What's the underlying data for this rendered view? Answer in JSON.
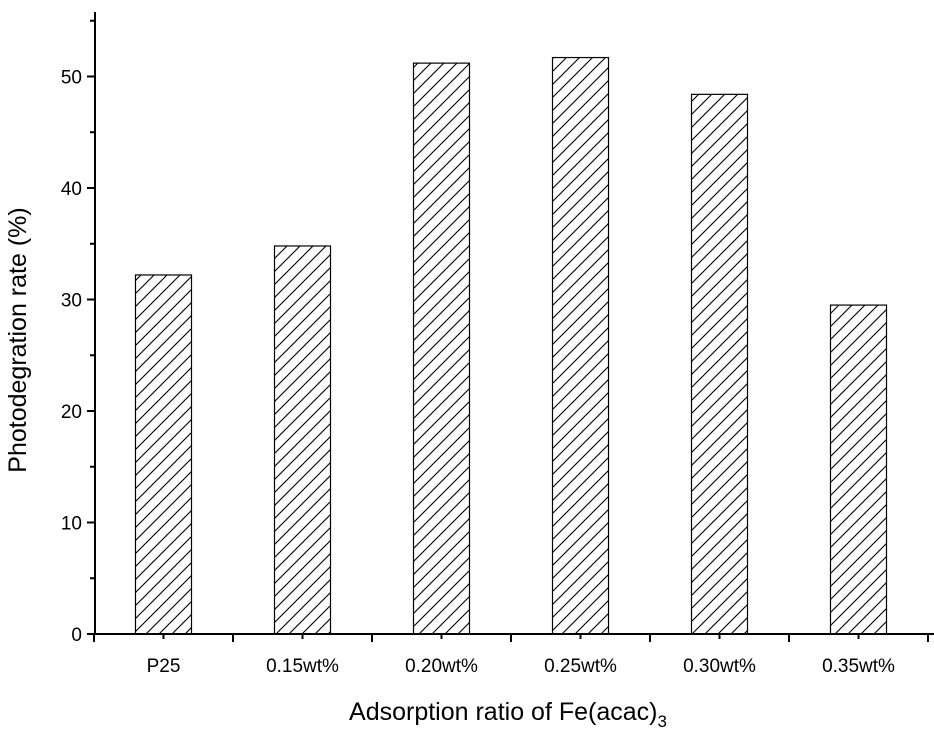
{
  "chart_data": {
    "type": "bar",
    "title": "",
    "xlabel": "Adsorption ratio of Fe(acac)",
    "xlabel_subscript": "3",
    "ylabel": "Photodegration rate (%)",
    "categories": [
      "P25",
      "0.15wt%",
      "0.20wt%",
      "0.25wt%",
      "0.30wt%",
      "0.35wt%"
    ],
    "values": [
      32.2,
      34.8,
      51.2,
      51.7,
      48.4,
      29.5
    ],
    "ylim": [
      0,
      55
    ],
    "yticks": [
      0,
      10,
      20,
      30,
      40,
      50
    ],
    "bar_fill": "diagonal-hatch",
    "grid": false
  }
}
